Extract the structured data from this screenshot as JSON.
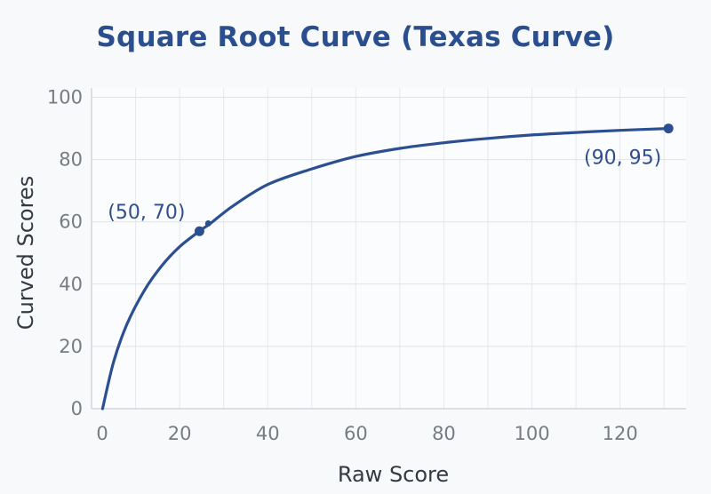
{
  "chart_data": {
    "type": "line",
    "title": "Square Root Curve (Texas Curve)",
    "xlabel": "Raw Score",
    "ylabel": "Curved Scores",
    "xlim": [
      0,
      135
    ],
    "ylim": [
      0,
      103
    ],
    "xticks": [
      0,
      20,
      40,
      60,
      80,
      100,
      120
    ],
    "yticks": [
      0,
      20,
      40,
      60,
      80,
      100
    ],
    "grid": true,
    "series": [
      {
        "color": "#2c4f91",
        "x": [
          2.5,
          5,
          8,
          12,
          16,
          20,
          24.5,
          27,
          32,
          40,
          50,
          60,
          70,
          80,
          90,
          100,
          110,
          120,
          131
        ],
        "y": [
          0,
          15,
          27,
          38,
          46,
          52,
          57,
          59.5,
          65,
          72,
          77,
          81,
          83.6,
          85.4,
          86.8,
          87.9,
          88.7,
          89.4,
          90
        ]
      }
    ],
    "points": [
      {
        "x": 24.5,
        "y": 57,
        "label": "(50, 70)"
      },
      {
        "x": 131,
        "y": 90,
        "label": "(90, 95)"
      }
    ],
    "small_marker": {
      "x": 26.5,
      "y": 59.5
    }
  }
}
